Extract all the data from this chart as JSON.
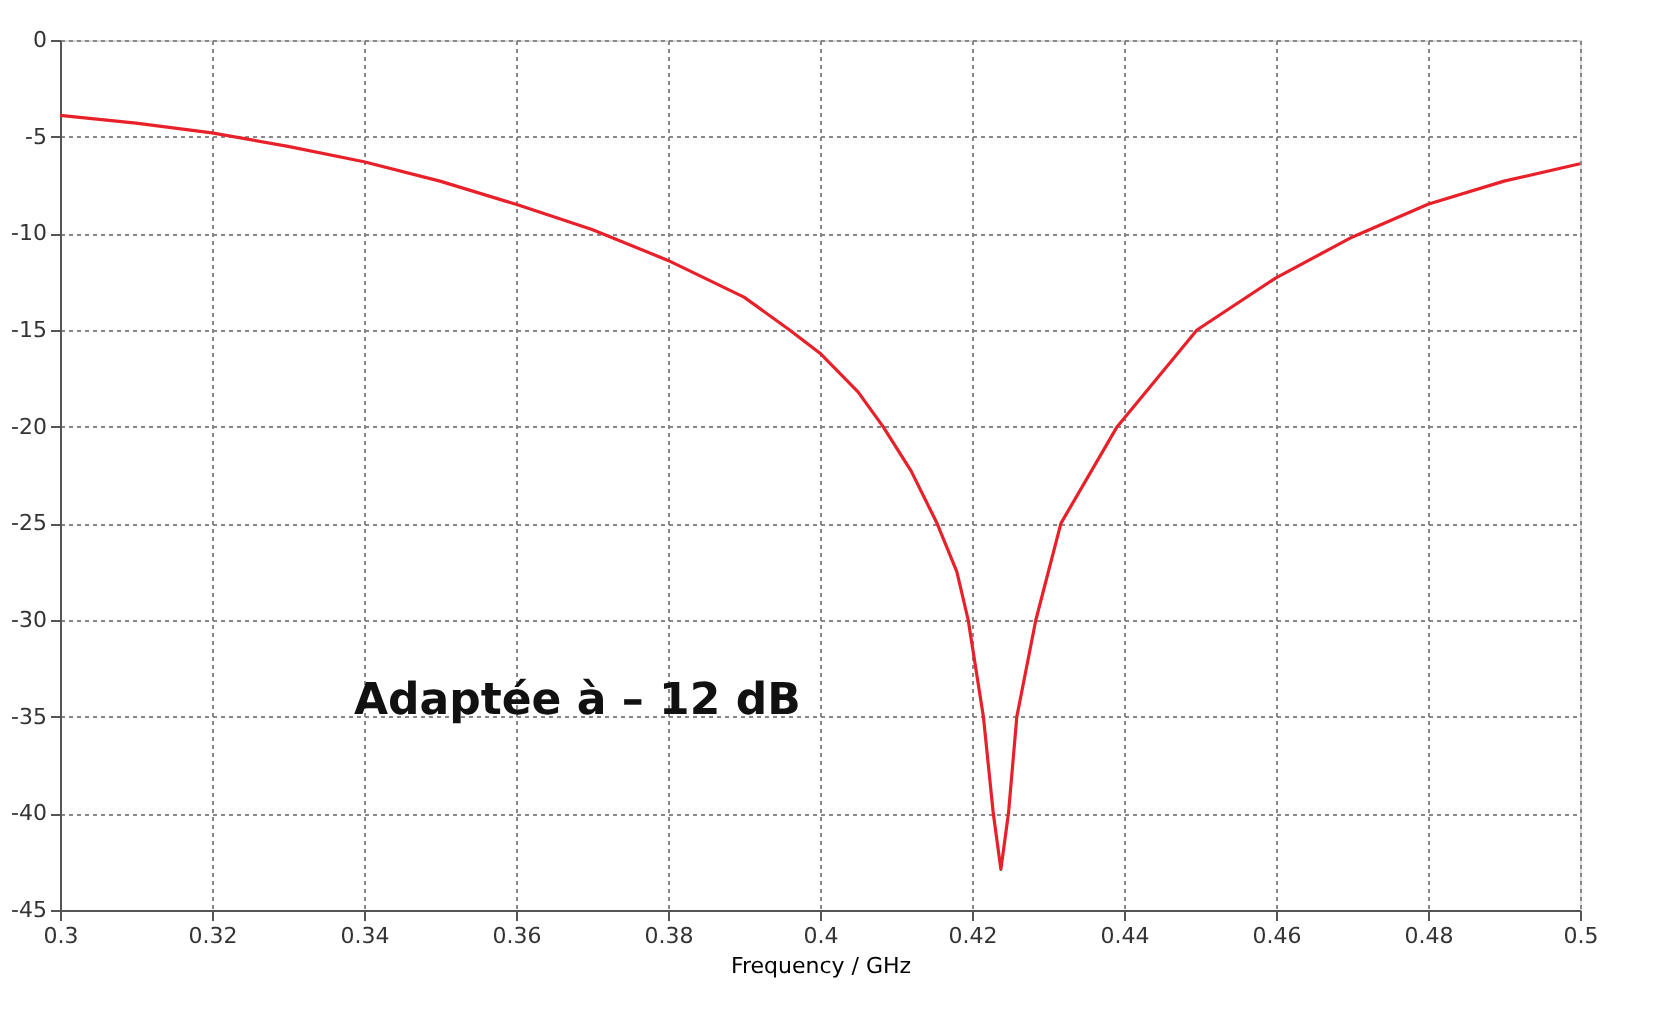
{
  "chart_data": {
    "type": "line",
    "xlabel": "Frequency / GHz",
    "annotations": [
      "Adaptée à – 12 dB"
    ],
    "series": [
      {
        "color": "#e8202a",
        "x": [
          0.3,
          0.31,
          0.32,
          0.33,
          0.34,
          0.35,
          0.36,
          0.37,
          0.38,
          0.39,
          0.396,
          0.4,
          0.405,
          0.4083,
          0.412,
          0.4154,
          0.418,
          0.4195,
          0.4215,
          0.4228,
          0.4238,
          0.4248,
          0.4259,
          0.4284,
          0.4317,
          0.4391,
          0.4496,
          0.46,
          0.47,
          0.48,
          0.49,
          0.5
        ],
        "values": [
          -3.9,
          -4.3,
          -4.8,
          -5.5,
          -6.3,
          -7.3,
          -8.5,
          -9.8,
          -11.4,
          -13.3,
          -15,
          -16.2,
          -18.2,
          -20,
          -22.3,
          -25,
          -27.5,
          -30,
          -35,
          -40,
          -42.9,
          -40,
          -35,
          -30,
          -25,
          -20,
          -15,
          -12.3,
          -10.2,
          -8.5,
          -7.3,
          -6.4
        ]
      }
    ],
    "xlim": [
      0.3,
      0.5
    ],
    "xticks": [
      0.3,
      0.32,
      0.34,
      0.36,
      0.38,
      0.4,
      0.42,
      0.44,
      0.46,
      0.48,
      0.5
    ],
    "ylim": [
      -45,
      0
    ],
    "yticks": [
      0,
      -5,
      -10,
      -15,
      -20,
      -25,
      -30,
      -35,
      -40,
      -45
    ],
    "grid": true,
    "marker": "none",
    "line_style": "solid"
  }
}
